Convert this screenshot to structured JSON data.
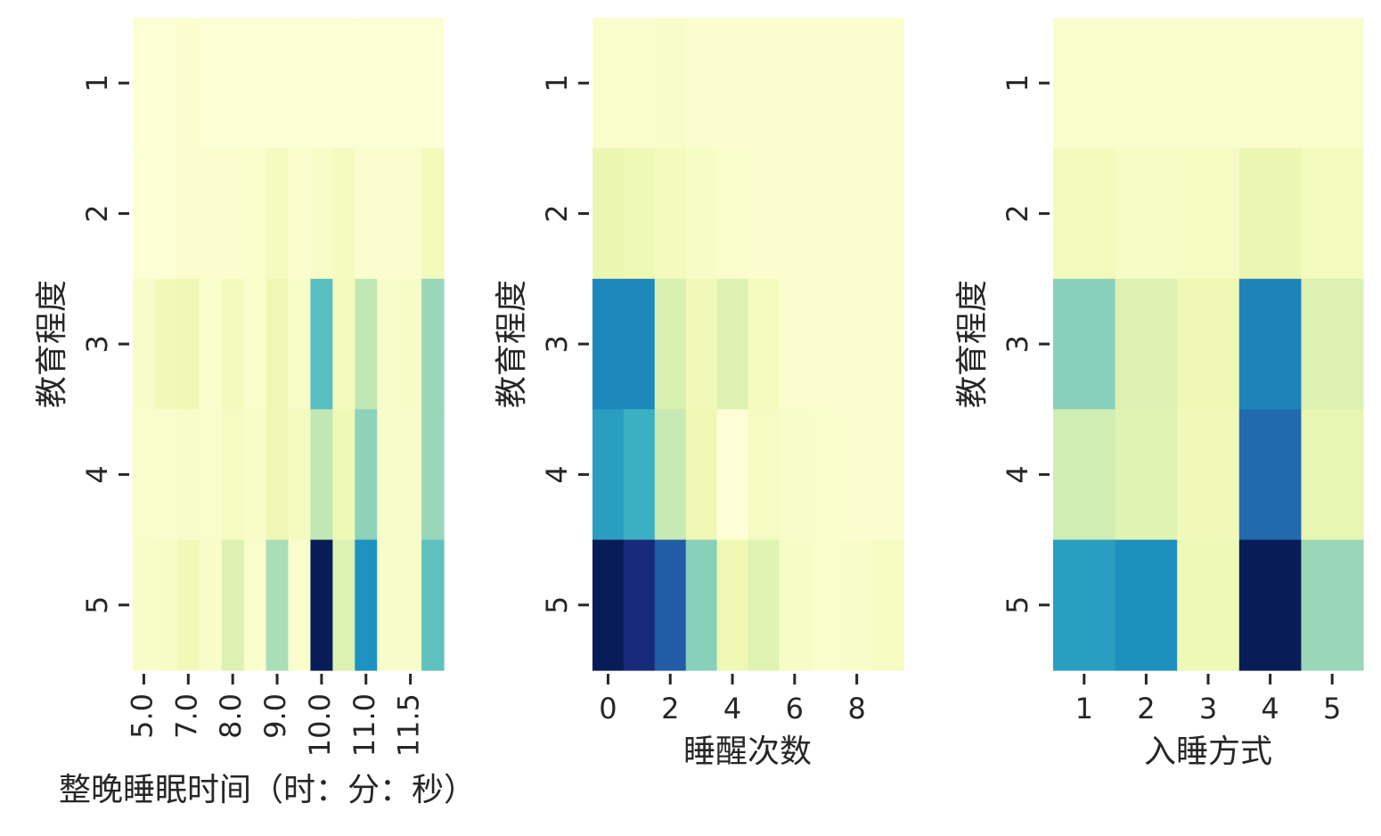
{
  "chart_data": [
    {
      "type": "heatmap",
      "colormap": "YlGnBu",
      "xlabel": "整晚睡眠时间（时：分：秒）",
      "ylabel": "教育程度",
      "y_categories": [
        "1",
        "2",
        "3",
        "4",
        "5"
      ],
      "x_tick_labels": [
        "5.0",
        "7.0",
        "8.0",
        "9.0",
        "10.0",
        "11.0",
        "11.5"
      ],
      "n_columns": 14,
      "tick_columns": [
        0,
        2,
        4,
        6,
        8,
        10,
        12
      ],
      "vmax": 1.0,
      "values": [
        [
          0.02,
          0.02,
          0.03,
          0.02,
          0.02,
          0.02,
          0.02,
          0.02,
          0.02,
          0.02,
          0.02,
          0.02,
          0.02,
          0.02
        ],
        [
          0.02,
          0.02,
          0.03,
          0.03,
          0.03,
          0.04,
          0.08,
          0.03,
          0.05,
          0.08,
          0.03,
          0.03,
          0.03,
          0.09
        ],
        [
          0.05,
          0.1,
          0.12,
          0.04,
          0.09,
          0.04,
          0.12,
          0.05,
          0.45,
          0.09,
          0.26,
          0.05,
          0.06,
          0.33
        ],
        [
          0.04,
          0.04,
          0.05,
          0.04,
          0.07,
          0.05,
          0.12,
          0.08,
          0.26,
          0.11,
          0.35,
          0.05,
          0.05,
          0.33
        ],
        [
          0.05,
          0.06,
          0.1,
          0.05,
          0.18,
          0.04,
          0.3,
          0.04,
          1.0,
          0.18,
          0.62,
          0.05,
          0.05,
          0.44
        ]
      ]
    },
    {
      "type": "heatmap",
      "colormap": "YlGnBu",
      "xlabel": "睡醒次数",
      "ylabel": "教育程度",
      "y_categories": [
        "1",
        "2",
        "3",
        "4",
        "5"
      ],
      "x_tick_labels": [
        "0",
        "2",
        "4",
        "6",
        "8"
      ],
      "n_columns": 10,
      "tick_columns": [
        0,
        2,
        4,
        6,
        8
      ],
      "vmax": 1.0,
      "values": [
        [
          0.04,
          0.04,
          0.05,
          0.03,
          0.03,
          0.03,
          0.03,
          0.03,
          0.03,
          0.03
        ],
        [
          0.13,
          0.11,
          0.09,
          0.06,
          0.04,
          0.03,
          0.03,
          0.03,
          0.03,
          0.03
        ],
        [
          0.65,
          0.65,
          0.19,
          0.1,
          0.18,
          0.08,
          0.03,
          0.03,
          0.03,
          0.03
        ],
        [
          0.58,
          0.52,
          0.25,
          0.12,
          0.01,
          0.07,
          0.05,
          0.04,
          0.03,
          0.03
        ],
        [
          1.0,
          0.93,
          0.76,
          0.36,
          0.12,
          0.17,
          0.06,
          0.04,
          0.05,
          0.07
        ]
      ]
    },
    {
      "type": "heatmap",
      "colormap": "YlGnBu",
      "xlabel": "入睡方式",
      "ylabel": "教育程度",
      "y_categories": [
        "1",
        "2",
        "3",
        "4",
        "5"
      ],
      "x_tick_labels": [
        "1",
        "2",
        "3",
        "4",
        "5"
      ],
      "n_columns": 5,
      "tick_columns": [
        0,
        1,
        2,
        3,
        4
      ],
      "vmax": 1.0,
      "values": [
        [
          0.04,
          0.04,
          0.04,
          0.04,
          0.04
        ],
        [
          0.09,
          0.06,
          0.07,
          0.13,
          0.08
        ],
        [
          0.36,
          0.18,
          0.12,
          0.66,
          0.18
        ],
        [
          0.22,
          0.17,
          0.1,
          0.72,
          0.14
        ],
        [
          0.58,
          0.63,
          0.11,
          1.0,
          0.33
        ]
      ]
    }
  ]
}
